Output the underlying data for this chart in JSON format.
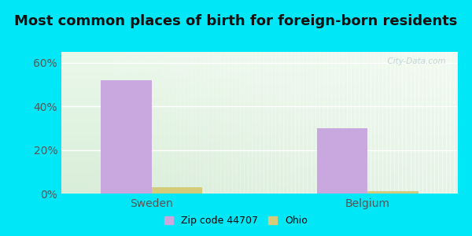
{
  "title": "Most common places of birth for foreign-born residents",
  "categories": [
    "Sweden",
    "Belgium"
  ],
  "series": [
    {
      "label": "Zip code 44707",
      "values": [
        52,
        30
      ],
      "color": "#c9a8df"
    },
    {
      "label": "Ohio",
      "values": [
        3,
        1
      ],
      "color": "#d4cc7a"
    }
  ],
  "ylim": [
    0,
    65
  ],
  "yticks": [
    0,
    20,
    40,
    60
  ],
  "yticklabels": [
    "0%",
    "20%",
    "40%",
    "60%"
  ],
  "background_outer": "#00e8f8",
  "title_fontsize": 13,
  "axis_label_fontsize": 10,
  "legend_fontsize": 9,
  "bar_width": 0.28,
  "group_positions": [
    0.5,
    1.7
  ],
  "watermark": "  City-Data.com",
  "watermark_icon": "●"
}
